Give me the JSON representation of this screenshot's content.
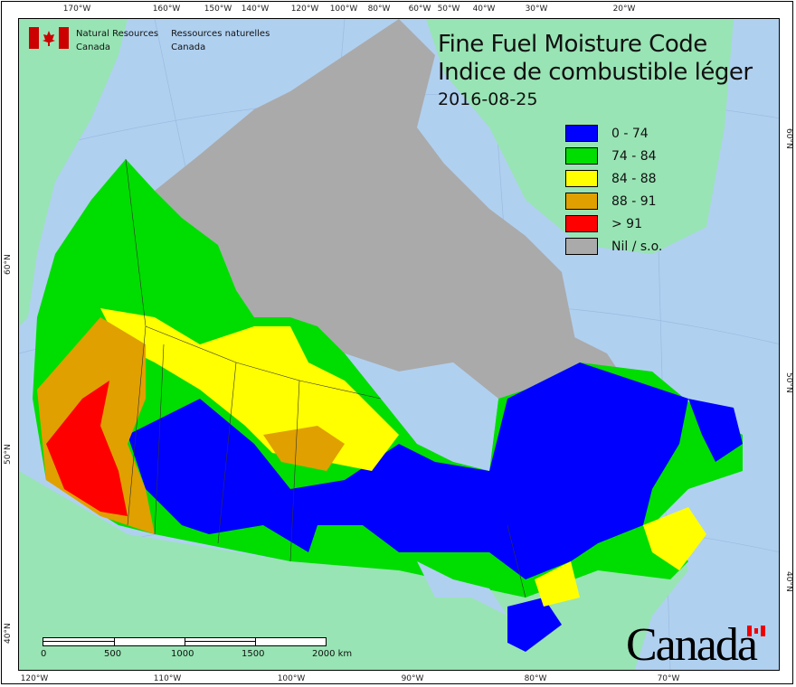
{
  "title": {
    "line1": "Fine Fuel Moisture Code",
    "line2": "Indice de combustible léger",
    "date": "2016-08-25"
  },
  "agency": {
    "en_line1": "Natural Resources",
    "en_line2": "Canada",
    "fr_line1": "Ressources naturelles",
    "fr_line2": "Canada",
    "wordmark": "Canada"
  },
  "legend": [
    {
      "label": "0 - 74",
      "color": "#0000ff"
    },
    {
      "label": "74 - 84",
      "color": "#00dd00"
    },
    {
      "label": "84 - 88",
      "color": "#ffff00"
    },
    {
      "label": "88 - 91",
      "color": "#e0a000"
    },
    {
      "label": "> 91",
      "color": "#ff0000"
    },
    {
      "label": "Nil / s.o.",
      "color": "#aaaaaa"
    }
  ],
  "top_ticks": [
    "170°W",
    "160°W",
    "150°W",
    "140°W",
    "120°W",
    "100°W",
    "80°W",
    "60°W",
    "50°W",
    "40°W",
    "30°W",
    "20°W"
  ],
  "bottom_ticks": [
    "120°W",
    "110°W",
    "100°W",
    "90°W",
    "80°W",
    "70°W"
  ],
  "left_ticks": [
    "60°N",
    "50°N",
    "40°N"
  ],
  "right_ticks": [
    "60°N",
    "50°N",
    "40°N"
  ],
  "scale": {
    "labels": [
      "0",
      "500",
      "1000",
      "1500",
      "2000 km"
    ]
  },
  "colors": {
    "ocean": "#b0d0f0",
    "land": "#98e4b4"
  }
}
